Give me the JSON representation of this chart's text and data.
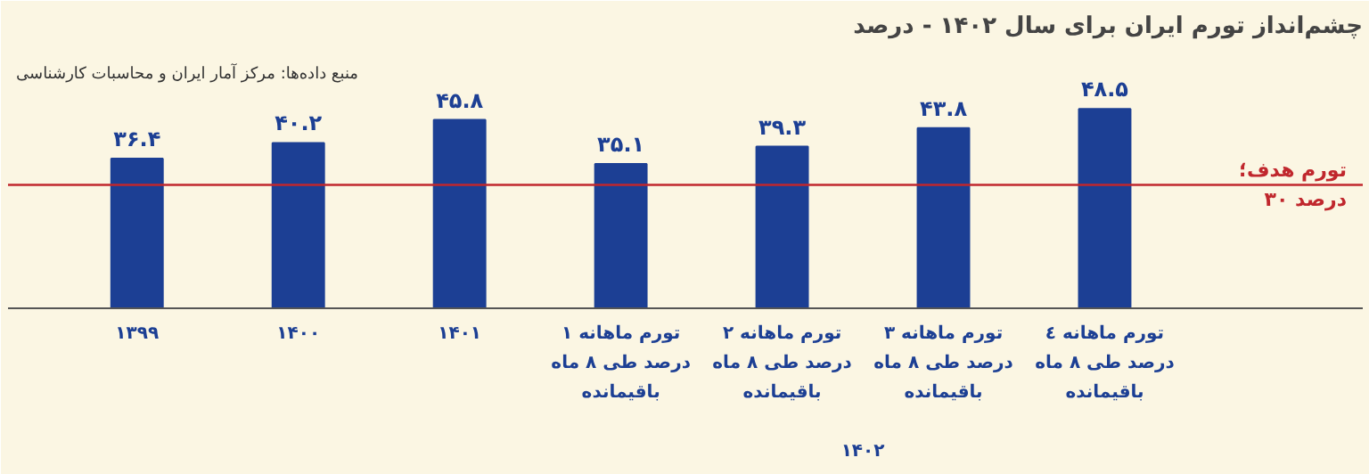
{
  "chart_data": {
    "type": "bar",
    "title": "چشم‌انداز تورم ایران برای سال ۱۴۰۲ - درصد",
    "categories": [
      "۱۳۹۹",
      "۱۴۰۰",
      "۱۴۰۱",
      "تورم ماهانه ۱\nدرصد طی ۸ ماه\nباقیمانده",
      "تورم ماهانه ۲\nدرصد طی ۸ ماه\nباقیمانده",
      "تورم ماهانه ۳\nدرصد طی ۸ ماه\nباقیمانده",
      "تورم ماهانه ٤\nدرصد طی ۸ ماه\nباقیمانده"
    ],
    "values": [
      36.4,
      40.2,
      45.8,
      35.1,
      39.3,
      43.8,
      48.5
    ],
    "value_labels": [
      "۳۶.۴",
      "۴۰.۲",
      "۴۵.۸",
      "۳۵.۱",
      "۳۹.۳",
      "۴۳.۸",
      "۴۸.۵"
    ],
    "color": "#1c3f94",
    "ref_lines": [
      {
        "axis": "y",
        "value": 30,
        "label": "تورم هدف؛\n۳۰ درصد",
        "color": "#c0272d"
      }
    ],
    "annotations": [
      "منبع داده‌ها: مرکز آمار ایران و محاسبات کارشناسی",
      "۱۴۰۲"
    ],
    "grid": false
  }
}
